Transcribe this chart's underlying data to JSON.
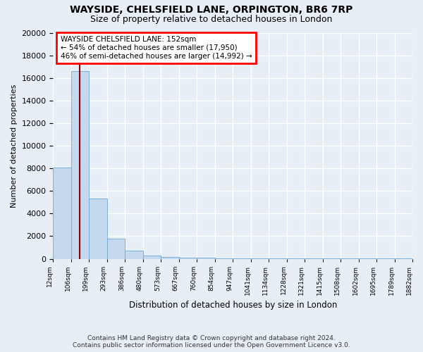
{
  "title": "WAYSIDE, CHELSFIELD LANE, ORPINGTON, BR6 7RP",
  "subtitle": "Size of property relative to detached houses in London",
  "xlabel": "Distribution of detached houses by size in London",
  "ylabel": "Number of detached properties",
  "bar_values": [
    8100,
    16600,
    5300,
    1800,
    700,
    280,
    180,
    110,
    90,
    40,
    25,
    15,
    12,
    8,
    6,
    4,
    3,
    2,
    2,
    1
  ],
  "bar_color": "#c5d9ee",
  "bar_edge_color": "#6fa8d4",
  "x_labels": [
    "12sqm",
    "106sqm",
    "199sqm",
    "293sqm",
    "386sqm",
    "480sqm",
    "573sqm",
    "667sqm",
    "760sqm",
    "854sqm",
    "947sqm",
    "1041sqm",
    "1134sqm",
    "1228sqm",
    "1321sqm",
    "1415sqm",
    "1508sqm",
    "1602sqm",
    "1695sqm",
    "1789sqm",
    "1882sqm"
  ],
  "red_line_x": 1.49,
  "annotation_title": "WAYSIDE CHELSFIELD LANE: 152sqm",
  "annotation_line1": "← 54% of detached houses are smaller (17,950)",
  "annotation_line2": "46% of semi-detached houses are larger (14,992) →",
  "ylim": [
    0,
    20000
  ],
  "yticks": [
    0,
    2000,
    4000,
    6000,
    8000,
    10000,
    12000,
    14000,
    16000,
    18000,
    20000
  ],
  "footer1": "Contains HM Land Registry data © Crown copyright and database right 2024.",
  "footer2": "Contains public sector information licensed under the Open Government Licence v3.0.",
  "bg_color": "#e8eef5",
  "grid_color": "#ffffff",
  "title_fontsize": 10,
  "subtitle_fontsize": 9
}
